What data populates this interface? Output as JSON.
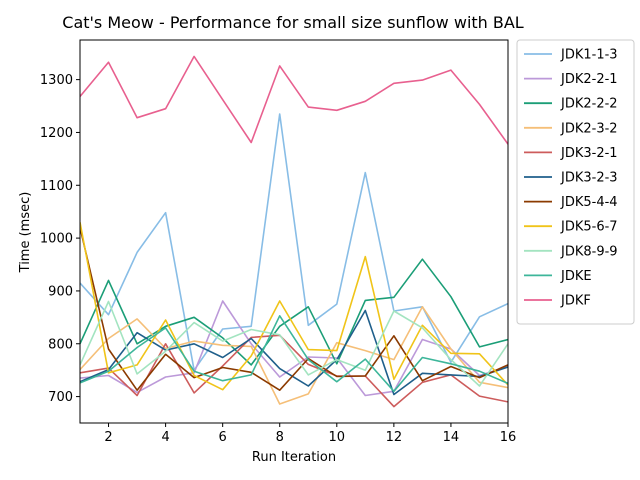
{
  "chart_data": {
    "type": "line",
    "title": "Cat's Meow - Performance for small size sunflow with BAL",
    "xlabel": "Run Iteration",
    "ylabel": "Time (msec)",
    "xlim": [
      1,
      16
    ],
    "ylim": [
      650,
      1375
    ],
    "xticks": [
      2,
      4,
      6,
      8,
      10,
      12,
      14,
      16
    ],
    "yticks": [
      700,
      800,
      900,
      1000,
      1100,
      1200,
      1300
    ],
    "grid": false,
    "legend_position": "outside-right",
    "x": [
      1,
      2,
      3,
      4,
      5,
      6,
      7,
      8,
      9,
      10,
      11,
      12,
      13,
      14,
      15,
      16
    ],
    "series": [
      {
        "name": "JDK1-1-3",
        "color": "#88bde6",
        "values": [
          915,
          855,
          973,
          1048,
          750,
          828,
          833,
          1235,
          835,
          875,
          1124,
          862,
          870,
          765,
          851,
          876
        ]
      },
      {
        "name": "JDK2-2-1",
        "color": "#bc99d9",
        "values": [
          735,
          740,
          708,
          737,
          745,
          881,
          800,
          737,
          775,
          773,
          702,
          710,
          808,
          790,
          740,
          757
        ]
      },
      {
        "name": "JDK2-2-2",
        "color": "#1b9e77",
        "values": [
          800,
          920,
          800,
          833,
          850,
          811,
          760,
          833,
          870,
          762,
          882,
          888,
          960,
          889,
          794,
          808
        ]
      },
      {
        "name": "JDK2-3-2",
        "color": "#f5bf78",
        "values": [
          751,
          810,
          847,
          791,
          805,
          797,
          795,
          686,
          705,
          802,
          787,
          770,
          870,
          790,
          727,
          717
        ]
      },
      {
        "name": "JDK3-2-1",
        "color": "#cd5c5c",
        "values": [
          745,
          754,
          702,
          800,
          707,
          758,
          812,
          816,
          761,
          739,
          739,
          681,
          727,
          741,
          701,
          690
        ]
      },
      {
        "name": "JDK3-2-3",
        "color": "#1f5f8b",
        "values": [
          728,
          751,
          821,
          788,
          800,
          774,
          810,
          753,
          720,
          770,
          863,
          704,
          744,
          741,
          738,
          756
        ]
      },
      {
        "name": "JDK5-4-4",
        "color": "#8b3a00",
        "values": [
          1020,
          790,
          712,
          780,
          736,
          755,
          746,
          712,
          772,
          738,
          739,
          815,
          730,
          757,
          736,
          760
        ]
      },
      {
        "name": "JDK5-6-7",
        "color": "#f0c419",
        "values": [
          1030,
          745,
          760,
          845,
          740,
          713,
          777,
          881,
          789,
          787,
          965,
          733,
          835,
          782,
          781,
          722
        ]
      },
      {
        "name": "JDK8-9-9",
        "color": "#a3e4c0",
        "values": [
          760,
          880,
          743,
          786,
          840,
          805,
          827,
          817,
          741,
          770,
          750,
          862,
          830,
          770,
          720,
          800
        ]
      },
      {
        "name": "JDKE",
        "color": "#3db69a",
        "values": [
          726,
          748,
          793,
          830,
          748,
          730,
          741,
          853,
          770,
          728,
          771,
          710,
          774,
          762,
          748,
          725
        ]
      },
      {
        "name": "JDKF",
        "color": "#e8608f",
        "values": [
          1268,
          1333,
          1228,
          1245,
          1344,
          1262,
          1181,
          1326,
          1248,
          1242,
          1259,
          1293,
          1299,
          1318,
          1253,
          1178
        ]
      }
    ]
  }
}
